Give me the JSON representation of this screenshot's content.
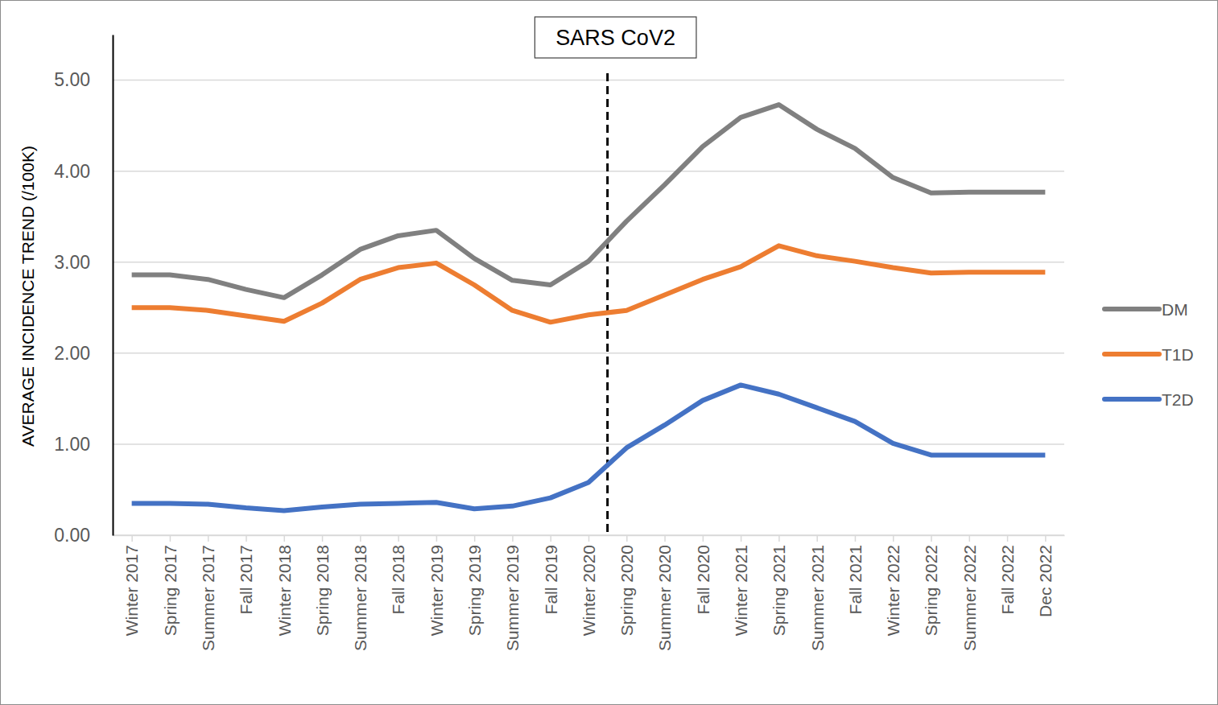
{
  "chart_data": {
    "type": "line",
    "y_label": "AVERAGE INCIDENCE TREND (/100K)",
    "categories": [
      "Winter 2017",
      "Spring 2017",
      "Summer 2017",
      "Fall 2017",
      "Winter 2018",
      "Spring 2018",
      "Summer 2018",
      "Fall 2018",
      "Winter 2019",
      "Spring 2019",
      "Summer 2019",
      "Fall 2019",
      "Winter 2020",
      "Spring 2020",
      "Summer 2020",
      "Fall 2020",
      "Winter 2021",
      "Spring 2021",
      "Summer 2021",
      "Fall 2021",
      "Winter 2022",
      "Spring 2022",
      "Summer 2022",
      "Fall 2022",
      "Dec 2022"
    ],
    "series": [
      {
        "name": "DM",
        "color": "#808080",
        "values": [
          2.86,
          2.86,
          2.81,
          2.7,
          2.61,
          2.86,
          3.14,
          3.29,
          3.35,
          3.04,
          2.8,
          2.75,
          3.01,
          3.45,
          3.85,
          4.27,
          4.59,
          4.73,
          4.46,
          4.25,
          3.93,
          3.76,
          3.77,
          3.77,
          3.77
        ]
      },
      {
        "name": "T1D",
        "color": "#ed7d31",
        "values": [
          2.5,
          2.5,
          2.47,
          2.41,
          2.35,
          2.55,
          2.81,
          2.94,
          2.99,
          2.75,
          2.47,
          2.34,
          2.42,
          2.47,
          2.64,
          2.81,
          2.95,
          3.18,
          3.07,
          3.01,
          2.94,
          2.88,
          2.89,
          2.89,
          2.89
        ]
      },
      {
        "name": "T2D",
        "color": "#4472c4",
        "values": [
          0.35,
          0.35,
          0.34,
          0.3,
          0.27,
          0.31,
          0.34,
          0.35,
          0.36,
          0.29,
          0.32,
          0.41,
          0.58,
          0.96,
          1.21,
          1.48,
          1.65,
          1.55,
          1.4,
          1.25,
          1.01,
          0.88,
          0.88,
          0.88,
          0.88
        ]
      }
    ],
    "ylim": [
      0,
      5.5
    ],
    "yticks": [
      {
        "value": 0,
        "label": "0.00"
      },
      {
        "value": 1,
        "label": "1.00"
      },
      {
        "value": 2,
        "label": "2.00"
      },
      {
        "value": 3,
        "label": "3.00"
      },
      {
        "value": 4,
        "label": "4.00"
      },
      {
        "value": 5,
        "label": "5.00"
      }
    ],
    "grid": true,
    "legend": "right",
    "annotations": [
      {
        "text": "SARS CoV2",
        "between": [
          "Winter 2020",
          "Spring 2020"
        ]
      }
    ]
  }
}
